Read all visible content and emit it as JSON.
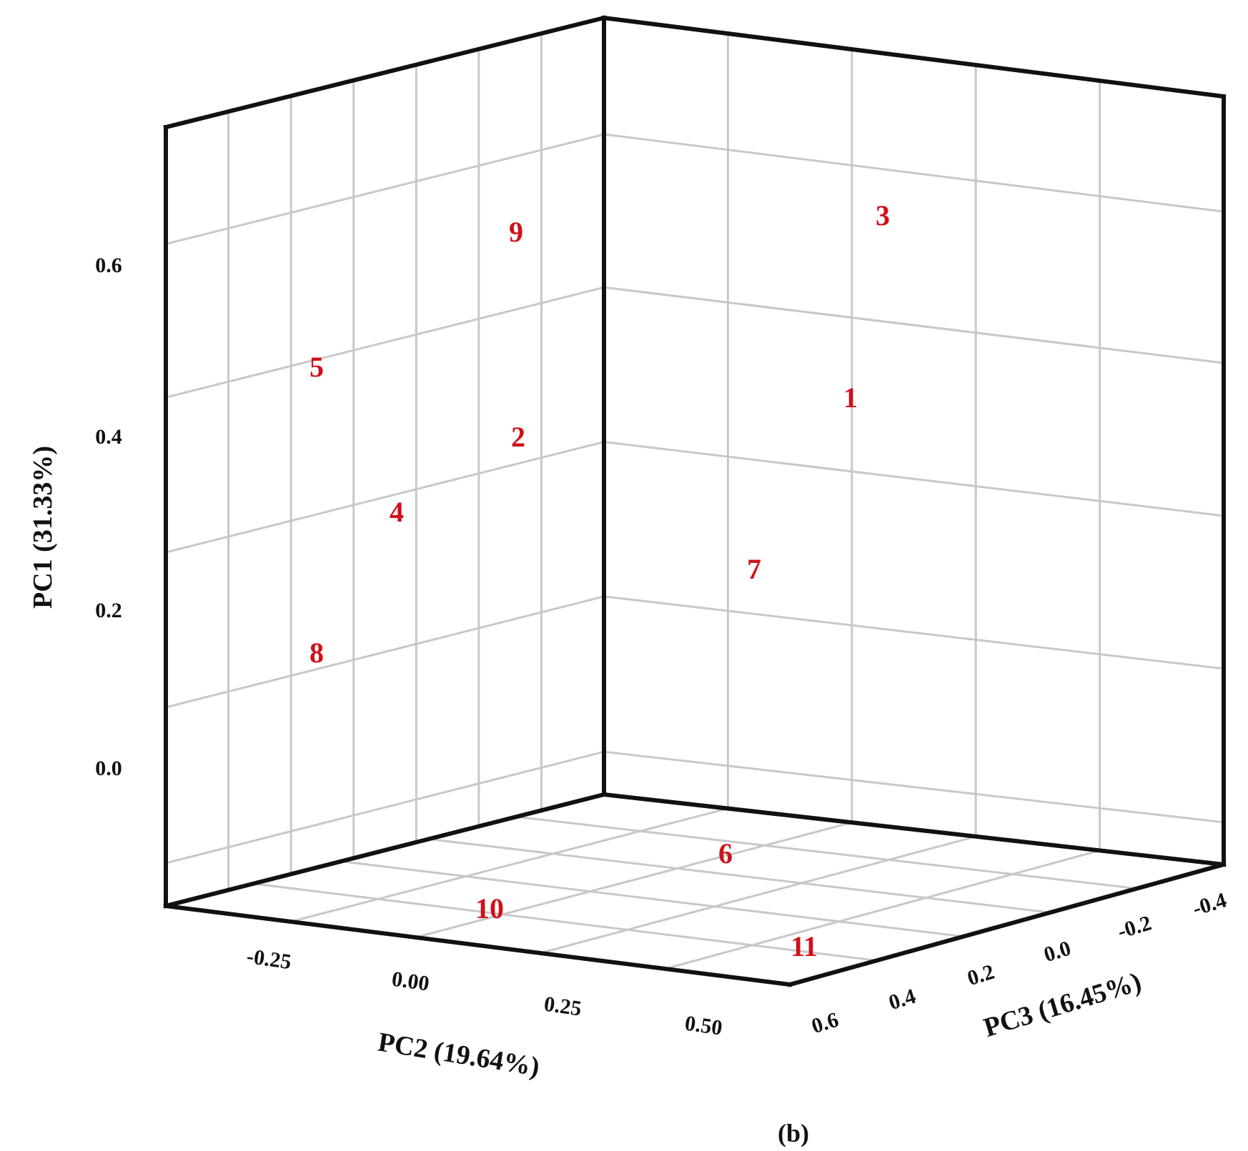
{
  "chart_data": {
    "type": "scatter",
    "subtype": "3d",
    "caption": "(b)",
    "axes": {
      "pc1": {
        "label": "PC1 (31.33%)",
        "ticks": [
          "0.0",
          "0.2",
          "0.4",
          "0.6"
        ]
      },
      "pc2": {
        "label": "PC2 (19.64%)",
        "ticks": [
          "-0.25",
          "0.00",
          "0.25",
          "0.50"
        ]
      },
      "pc3": {
        "label": "PC3 (16.45%)",
        "ticks": [
          "0.6",
          "0.4",
          "0.2",
          "0.0",
          "-0.2",
          "-0.4"
        ]
      }
    },
    "grid": true,
    "points": [
      {
        "label": "1"
      },
      {
        "label": "2"
      },
      {
        "label": "3"
      },
      {
        "label": "4"
      },
      {
        "label": "5"
      },
      {
        "label": "6"
      },
      {
        "label": "7"
      },
      {
        "label": "8"
      },
      {
        "label": "9"
      },
      {
        "label": "10"
      },
      {
        "label": "11"
      }
    ],
    "colors": {
      "point_label": "#d0101a",
      "frame": "#111111",
      "grid": "#c8c8c8"
    }
  }
}
